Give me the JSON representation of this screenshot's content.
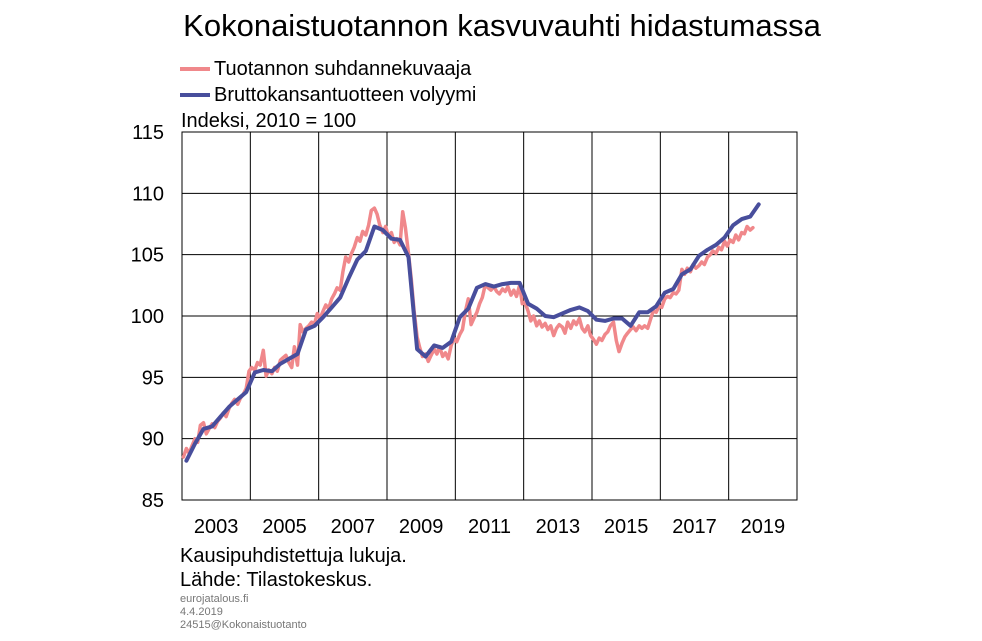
{
  "chart_data": {
    "type": "line",
    "title": "Kokonaistuotannon kasvuvauhti hidastumassa",
    "ylabel": "Indeksi, 2010 = 100",
    "ylim": [
      85,
      115
    ],
    "xlim": [
      2002.0,
      2020.0
    ],
    "yticks": [
      "85",
      "90",
      "95",
      "100",
      "105",
      "110",
      "115"
    ],
    "xticks": [
      "2003",
      "2005",
      "2007",
      "2009",
      "2011",
      "2013",
      "2015",
      "2017",
      "2019"
    ],
    "grid": true,
    "legend_position": "top-left",
    "series": [
      {
        "name": "Tuotannon suhdannekuvaaja",
        "color": "#f0888b",
        "points": [
          [
            2002.04,
            88.5
          ],
          [
            2002.13,
            89.2
          ],
          [
            2002.21,
            88.8
          ],
          [
            2002.29,
            89.4
          ],
          [
            2002.38,
            90.0
          ],
          [
            2002.46,
            89.7
          ],
          [
            2002.54,
            91.1
          ],
          [
            2002.63,
            91.3
          ],
          [
            2002.71,
            90.4
          ],
          [
            2002.79,
            90.8
          ],
          [
            2002.88,
            91.2
          ],
          [
            2002.96,
            90.9
          ],
          [
            2003.04,
            91.4
          ],
          [
            2003.13,
            91.7
          ],
          [
            2003.21,
            92.1
          ],
          [
            2003.29,
            91.8
          ],
          [
            2003.38,
            92.5
          ],
          [
            2003.46,
            92.9
          ],
          [
            2003.54,
            93.2
          ],
          [
            2003.63,
            92.8
          ],
          [
            2003.71,
            93.3
          ],
          [
            2003.79,
            93.6
          ],
          [
            2003.88,
            94.1
          ],
          [
            2003.96,
            95.5
          ],
          [
            2004.04,
            95.8
          ],
          [
            2004.13,
            95.6
          ],
          [
            2004.21,
            96.2
          ],
          [
            2004.29,
            96.0
          ],
          [
            2004.38,
            97.2
          ],
          [
            2004.46,
            95.1
          ],
          [
            2004.54,
            95.6
          ],
          [
            2004.63,
            95.3
          ],
          [
            2004.71,
            95.8
          ],
          [
            2004.79,
            95.5
          ],
          [
            2004.88,
            96.4
          ],
          [
            2004.96,
            96.6
          ],
          [
            2005.04,
            96.8
          ],
          [
            2005.13,
            96.2
          ],
          [
            2005.21,
            95.8
          ],
          [
            2005.29,
            97.5
          ],
          [
            2005.38,
            96.0
          ],
          [
            2005.46,
            99.3
          ],
          [
            2005.54,
            98.7
          ],
          [
            2005.63,
            99.0
          ],
          [
            2005.71,
            99.2
          ],
          [
            2005.79,
            99.5
          ],
          [
            2005.88,
            99.4
          ],
          [
            2005.96,
            100.2
          ],
          [
            2006.04,
            99.8
          ],
          [
            2006.13,
            100.4
          ],
          [
            2006.21,
            100.9
          ],
          [
            2006.29,
            100.6
          ],
          [
            2006.38,
            101.4
          ],
          [
            2006.46,
            101.8
          ],
          [
            2006.54,
            102.3
          ],
          [
            2006.63,
            102.1
          ],
          [
            2006.71,
            103.6
          ],
          [
            2006.79,
            104.8
          ],
          [
            2006.88,
            104.4
          ],
          [
            2006.96,
            105.1
          ],
          [
            2007.04,
            105.6
          ],
          [
            2007.13,
            106.4
          ],
          [
            2007.21,
            106.1
          ],
          [
            2007.29,
            106.9
          ],
          [
            2007.38,
            106.6
          ],
          [
            2007.46,
            107.4
          ],
          [
            2007.54,
            108.6
          ],
          [
            2007.63,
            108.8
          ],
          [
            2007.71,
            108.3
          ],
          [
            2007.79,
            107.4
          ],
          [
            2007.88,
            106.8
          ],
          [
            2007.96,
            107.3
          ],
          [
            2008.04,
            106.5
          ],
          [
            2008.13,
            106.8
          ],
          [
            2008.21,
            106.0
          ],
          [
            2008.29,
            106.3
          ],
          [
            2008.38,
            105.8
          ],
          [
            2008.46,
            108.5
          ],
          [
            2008.54,
            107.2
          ],
          [
            2008.63,
            105.1
          ],
          [
            2008.71,
            103.0
          ],
          [
            2008.79,
            100.5
          ],
          [
            2008.88,
            98.3
          ],
          [
            2008.96,
            97.4
          ],
          [
            2009.04,
            96.7
          ],
          [
            2009.13,
            96.9
          ],
          [
            2009.21,
            96.3
          ],
          [
            2009.29,
            96.8
          ],
          [
            2009.38,
            97.3
          ],
          [
            2009.46,
            96.9
          ],
          [
            2009.54,
            97.5
          ],
          [
            2009.63,
            96.7
          ],
          [
            2009.71,
            97.0
          ],
          [
            2009.79,
            96.5
          ],
          [
            2009.88,
            97.6
          ],
          [
            2009.96,
            98.2
          ],
          [
            2010.04,
            97.9
          ],
          [
            2010.13,
            98.5
          ],
          [
            2010.21,
            98.9
          ],
          [
            2010.29,
            100.3
          ],
          [
            2010.38,
            101.4
          ],
          [
            2010.46,
            99.3
          ],
          [
            2010.54,
            99.8
          ],
          [
            2010.63,
            100.3
          ],
          [
            2010.71,
            101.0
          ],
          [
            2010.79,
            101.5
          ],
          [
            2010.88,
            102.6
          ],
          [
            2010.96,
            102.3
          ],
          [
            2011.04,
            102.1
          ],
          [
            2011.13,
            102.4
          ],
          [
            2011.21,
            102.0
          ],
          [
            2011.29,
            101.8
          ],
          [
            2011.38,
            102.2
          ],
          [
            2011.46,
            102.0
          ],
          [
            2011.54,
            102.4
          ],
          [
            2011.63,
            101.7
          ],
          [
            2011.71,
            102.1
          ],
          [
            2011.79,
            101.6
          ],
          [
            2011.88,
            102.5
          ],
          [
            2011.96,
            101.0
          ],
          [
            2012.04,
            101.1
          ],
          [
            2012.13,
            100.4
          ],
          [
            2012.21,
            99.6
          ],
          [
            2012.29,
            100.0
          ],
          [
            2012.38,
            99.2
          ],
          [
            2012.46,
            99.6
          ],
          [
            2012.54,
            99.1
          ],
          [
            2012.63,
            99.4
          ],
          [
            2012.71,
            98.9
          ],
          [
            2012.79,
            99.2
          ],
          [
            2012.88,
            98.4
          ],
          [
            2012.96,
            99.0
          ],
          [
            2013.04,
            99.3
          ],
          [
            2013.13,
            99.1
          ],
          [
            2013.21,
            98.6
          ],
          [
            2013.29,
            99.5
          ],
          [
            2013.38,
            99.0
          ],
          [
            2013.46,
            99.6
          ],
          [
            2013.54,
            99.3
          ],
          [
            2013.63,
            99.8
          ],
          [
            2013.71,
            99.0
          ],
          [
            2013.79,
            98.7
          ],
          [
            2013.88,
            99.2
          ],
          [
            2013.96,
            98.4
          ],
          [
            2014.04,
            98.1
          ],
          [
            2014.13,
            97.7
          ],
          [
            2014.21,
            98.2
          ],
          [
            2014.29,
            98.0
          ],
          [
            2014.38,
            98.5
          ],
          [
            2014.46,
            98.7
          ],
          [
            2014.54,
            99.2
          ],
          [
            2014.63,
            99.5
          ],
          [
            2014.71,
            98.0
          ],
          [
            2014.79,
            97.1
          ],
          [
            2014.88,
            97.8
          ],
          [
            2014.96,
            98.3
          ],
          [
            2015.04,
            98.6
          ],
          [
            2015.13,
            98.9
          ],
          [
            2015.21,
            99.1
          ],
          [
            2015.29,
            98.8
          ],
          [
            2015.38,
            99.2
          ],
          [
            2015.46,
            99.0
          ],
          [
            2015.54,
            99.2
          ],
          [
            2015.63,
            99.0
          ],
          [
            2015.71,
            99.7
          ],
          [
            2015.79,
            100.4
          ],
          [
            2015.88,
            100.3
          ],
          [
            2015.96,
            100.8
          ],
          [
            2016.04,
            100.7
          ],
          [
            2016.13,
            101.4
          ],
          [
            2016.21,
            101.6
          ],
          [
            2016.29,
            101.5
          ],
          [
            2016.38,
            101.9
          ],
          [
            2016.46,
            101.8
          ],
          [
            2016.54,
            102.1
          ],
          [
            2016.63,
            103.8
          ],
          [
            2016.71,
            103.4
          ],
          [
            2016.79,
            103.9
          ],
          [
            2016.88,
            103.6
          ],
          [
            2016.96,
            104.2
          ],
          [
            2017.04,
            103.9
          ],
          [
            2017.13,
            104.1
          ],
          [
            2017.21,
            104.4
          ],
          [
            2017.29,
            104.2
          ],
          [
            2017.38,
            104.8
          ],
          [
            2017.46,
            105.0
          ],
          [
            2017.54,
            105.3
          ],
          [
            2017.63,
            105.1
          ],
          [
            2017.71,
            105.6
          ],
          [
            2017.79,
            105.4
          ],
          [
            2017.88,
            106.1
          ],
          [
            2017.96,
            105.7
          ],
          [
            2018.04,
            106.2
          ],
          [
            2018.13,
            106.0
          ],
          [
            2018.21,
            106.6
          ],
          [
            2018.29,
            106.2
          ],
          [
            2018.38,
            106.8
          ],
          [
            2018.46,
            106.7
          ],
          [
            2018.54,
            107.3
          ],
          [
            2018.63,
            107.0
          ],
          [
            2018.71,
            107.2
          ]
        ]
      },
      {
        "name": "Bruttokansantuotteen volyymi",
        "color": "#484e9c",
        "points": [
          [
            2002.13,
            88.2
          ],
          [
            2002.38,
            89.6
          ],
          [
            2002.63,
            90.8
          ],
          [
            2002.88,
            91.0
          ],
          [
            2003.13,
            91.8
          ],
          [
            2003.38,
            92.6
          ],
          [
            2003.63,
            93.2
          ],
          [
            2003.88,
            93.8
          ],
          [
            2004.13,
            95.4
          ],
          [
            2004.38,
            95.6
          ],
          [
            2004.63,
            95.5
          ],
          [
            2004.88,
            96.1
          ],
          [
            2005.13,
            96.5
          ],
          [
            2005.38,
            96.9
          ],
          [
            2005.63,
            98.9
          ],
          [
            2005.88,
            99.2
          ],
          [
            2006.13,
            99.9
          ],
          [
            2006.38,
            100.7
          ],
          [
            2006.63,
            101.5
          ],
          [
            2006.88,
            103.1
          ],
          [
            2007.13,
            104.6
          ],
          [
            2007.38,
            105.3
          ],
          [
            2007.63,
            107.3
          ],
          [
            2007.88,
            107.0
          ],
          [
            2008.13,
            106.3
          ],
          [
            2008.38,
            106.2
          ],
          [
            2008.63,
            104.8
          ],
          [
            2008.88,
            97.3
          ],
          [
            2009.13,
            96.7
          ],
          [
            2009.38,
            97.6
          ],
          [
            2009.63,
            97.4
          ],
          [
            2009.88,
            97.9
          ],
          [
            2010.13,
            99.9
          ],
          [
            2010.38,
            100.6
          ],
          [
            2010.63,
            102.3
          ],
          [
            2010.88,
            102.6
          ],
          [
            2011.13,
            102.4
          ],
          [
            2011.38,
            102.6
          ],
          [
            2011.63,
            102.7
          ],
          [
            2011.88,
            102.7
          ],
          [
            2012.13,
            101.0
          ],
          [
            2012.38,
            100.6
          ],
          [
            2012.63,
            100.0
          ],
          [
            2012.88,
            99.9
          ],
          [
            2013.13,
            100.2
          ],
          [
            2013.38,
            100.5
          ],
          [
            2013.63,
            100.7
          ],
          [
            2013.88,
            100.4
          ],
          [
            2014.13,
            99.7
          ],
          [
            2014.38,
            99.6
          ],
          [
            2014.63,
            99.8
          ],
          [
            2014.88,
            99.8
          ],
          [
            2015.13,
            99.2
          ],
          [
            2015.38,
            100.3
          ],
          [
            2015.63,
            100.3
          ],
          [
            2015.88,
            100.8
          ],
          [
            2016.13,
            101.9
          ],
          [
            2016.38,
            102.2
          ],
          [
            2016.63,
            103.4
          ],
          [
            2016.88,
            103.8
          ],
          [
            2017.13,
            104.9
          ],
          [
            2017.38,
            105.4
          ],
          [
            2017.63,
            105.8
          ],
          [
            2017.88,
            106.4
          ],
          [
            2018.13,
            107.4
          ],
          [
            2018.38,
            107.9
          ],
          [
            2018.63,
            108.1
          ],
          [
            2018.88,
            109.1
          ]
        ]
      }
    ]
  },
  "footer": {
    "note": "Kausipuhdistettuja  lukuja.",
    "source": "Lähde: Tilastokeskus.",
    "site": "eurojatalous.fi",
    "date": "4.4.2019",
    "code": "24515@Kokonaistuotanto"
  }
}
